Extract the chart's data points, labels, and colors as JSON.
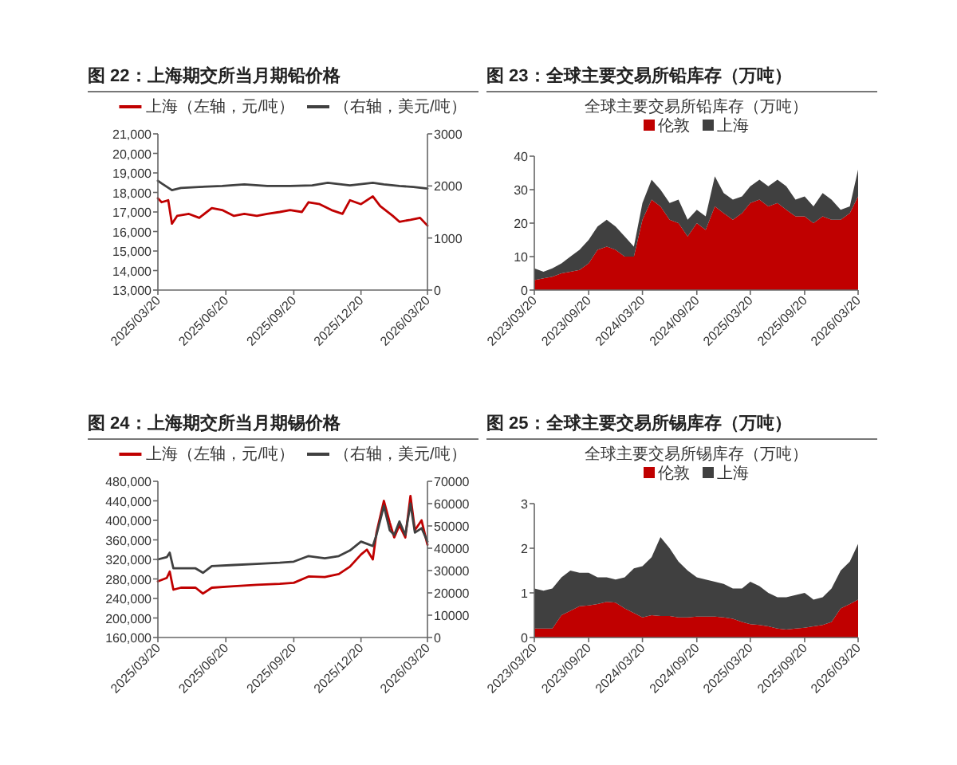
{
  "chart_data": [
    {
      "type": "line",
      "title": "图 22：上海期交所当月期铅价格",
      "legend": "top",
      "xlim": [
        "2025-03-20",
        "2026-03-20"
      ],
      "xticks": [
        {
          "value": "2025-03-20",
          "label": "2025/03/20"
        },
        {
          "value": "2025-06-20",
          "label": "2025/06/20"
        },
        {
          "value": "2025-09-20",
          "label": "2025/09/20"
        },
        {
          "value": "2025-12-20",
          "label": "2025/12/20"
        },
        {
          "value": "2026-03-20",
          "label": "2026/03/20"
        }
      ],
      "ylim": [
        13000,
        21000
      ],
      "yticks": [
        {
          "value": 13000,
          "label": "13,000"
        },
        {
          "value": 14000,
          "label": "14,000"
        },
        {
          "value": 15000,
          "label": "15,000"
        },
        {
          "value": 16000,
          "label": "16,000"
        },
        {
          "value": 17000,
          "label": "17,000"
        },
        {
          "value": 18000,
          "label": "18,000"
        },
        {
          "value": 19000,
          "label": "19,000"
        },
        {
          "value": 20000,
          "label": "20,000"
        },
        {
          "value": 21000,
          "label": "21,000"
        }
      ],
      "y2lim": [
        0,
        3000
      ],
      "y2ticks": [
        0,
        1000,
        2000,
        3000
      ],
      "series": [
        {
          "name": "上海（左轴，元/吨）",
          "color": "#c00000",
          "x": [
            "2025-03-20",
            "2025-03-25",
            "2025-04-03",
            "2025-04-08",
            "2025-04-15",
            "2025-05-01",
            "2025-05-15",
            "2025-06-01",
            "2025-06-15",
            "2025-07-01",
            "2025-07-15",
            "2025-08-01",
            "2025-08-15",
            "2025-09-01",
            "2025-09-15",
            "2025-10-01",
            "2025-10-10",
            "2025-10-25",
            "2025-11-10",
            "2025-11-25",
            "2025-12-05",
            "2025-12-20",
            "2026-01-05",
            "2026-01-15",
            "2026-02-01",
            "2026-02-10",
            "2026-02-25",
            "2026-03-10",
            "2026-03-20"
          ],
          "values": [
            17700,
            17500,
            17600,
            16400,
            16800,
            16900,
            16700,
            17200,
            17100,
            16800,
            16900,
            16800,
            16900,
            17000,
            17100,
            17000,
            17500,
            17400,
            17100,
            16900,
            17600,
            17400,
            17800,
            17300,
            16800,
            16500,
            16600,
            16700,
            16300
          ]
        },
        {
          "name": "（右轴，美元/吨）",
          "color": "#404040",
          "axis": "y2",
          "x": [
            "2025-03-20",
            "2025-03-25",
            "2025-04-08",
            "2025-04-20",
            "2025-05-15",
            "2025-06-15",
            "2025-07-15",
            "2025-08-15",
            "2025-09-15",
            "2025-10-15",
            "2025-11-05",
            "2025-12-05",
            "2026-01-05",
            "2026-01-20",
            "2026-02-10",
            "2026-03-01",
            "2026-03-20"
          ],
          "values": [
            2100,
            2050,
            1920,
            1960,
            1980,
            2000,
            2030,
            2000,
            2000,
            2010,
            2060,
            2010,
            2060,
            2030,
            2000,
            1980,
            1950
          ]
        }
      ]
    },
    {
      "type": "area",
      "stacked": true,
      "title": "图 23：全球主要交易所铅库存（万吨）",
      "subtitle": "全球主要交易所铅库存（万吨）",
      "legend": "top",
      "x": [
        "2023-03-20",
        "2023-04-20",
        "2023-05-20",
        "2023-06-20",
        "2023-07-20",
        "2023-08-20",
        "2023-09-20",
        "2023-10-20",
        "2023-11-20",
        "2023-12-20",
        "2024-01-20",
        "2024-02-20",
        "2024-03-20",
        "2024-04-20",
        "2024-05-20",
        "2024-06-20",
        "2024-07-20",
        "2024-08-20",
        "2024-09-20",
        "2024-10-20",
        "2024-11-20",
        "2024-12-20",
        "2025-01-20",
        "2025-02-20",
        "2025-03-20",
        "2025-04-20",
        "2025-05-20",
        "2025-06-20",
        "2025-07-20",
        "2025-08-20",
        "2025-09-20",
        "2025-10-20",
        "2025-11-20",
        "2025-12-20",
        "2026-01-20",
        "2026-02-20",
        "2026-03-20"
      ],
      "xlim": [
        "2023-03-20",
        "2026-03-20"
      ],
      "xticks": [
        {
          "value": "2023-03-20",
          "label": "2023/03/20"
        },
        {
          "value": "2023-09-20",
          "label": "2023/09/20"
        },
        {
          "value": "2024-03-20",
          "label": "2024/03/20"
        },
        {
          "value": "2024-09-20",
          "label": "2024/09/20"
        },
        {
          "value": "2025-03-20",
          "label": "2025/03/20"
        },
        {
          "value": "2025-09-20",
          "label": "2025/09/20"
        },
        {
          "value": "2026-03-20",
          "label": "2026/03/20"
        }
      ],
      "ylim": [
        0,
        40
      ],
      "yticks": [
        0,
        10,
        20,
        30,
        40
      ],
      "series": [
        {
          "name": "伦敦",
          "color": "#c00000",
          "values": [
            3,
            3.5,
            4,
            5,
            5.5,
            6,
            8,
            12,
            13,
            12,
            10,
            10,
            21,
            27,
            25,
            21,
            20,
            16,
            20,
            18,
            25,
            23,
            21,
            23,
            26,
            27,
            25,
            26,
            24,
            22,
            22,
            20,
            22,
            21,
            21,
            23,
            28
          ]
        },
        {
          "name": "上海",
          "color": "#404040",
          "values": [
            3.5,
            2,
            2.5,
            3,
            4.5,
            6,
            7,
            7,
            8,
            7,
            6,
            3,
            5,
            6,
            5,
            5,
            7,
            5,
            4,
            4,
            9,
            6,
            6,
            5,
            5,
            6,
            6,
            7,
            7,
            5,
            6,
            5,
            7,
            6,
            3,
            2,
            8
          ]
        }
      ]
    },
    {
      "type": "line",
      "title": "图 24：上海期交所当月期锡价格",
      "legend": "top",
      "xlim": [
        "2025-03-20",
        "2026-03-20"
      ],
      "xticks": [
        {
          "value": "2025-03-20",
          "label": "2025/03/20"
        },
        {
          "value": "2025-06-20",
          "label": "2025/06/20"
        },
        {
          "value": "2025-09-20",
          "label": "2025/09/20"
        },
        {
          "value": "2025-12-20",
          "label": "2025/12/20"
        },
        {
          "value": "2026-03-20",
          "label": "2026/03/20"
        }
      ],
      "ylim": [
        160000,
        480000
      ],
      "yticks": [
        {
          "value": 160000,
          "label": "160,000"
        },
        {
          "value": 200000,
          "label": "200,000"
        },
        {
          "value": 240000,
          "label": "240,000"
        },
        {
          "value": 280000,
          "label": "280,000"
        },
        {
          "value": 320000,
          "label": "320,000"
        },
        {
          "value": 360000,
          "label": "360,000"
        },
        {
          "value": 400000,
          "label": "400,000"
        },
        {
          "value": 440000,
          "label": "440,000"
        },
        {
          "value": 480000,
          "label": "480,000"
        }
      ],
      "y2lim": [
        0,
        70000
      ],
      "y2ticks": [
        0,
        10000,
        20000,
        30000,
        40000,
        50000,
        60000,
        70000
      ],
      "series": [
        {
          "name": "上海（左轴，元/吨）",
          "color": "#c00000",
          "x": [
            "2025-03-20",
            "2025-04-01",
            "2025-04-05",
            "2025-04-10",
            "2025-04-20",
            "2025-05-10",
            "2025-05-20",
            "2025-06-01",
            "2025-07-01",
            "2025-08-01",
            "2025-09-01",
            "2025-09-20",
            "2025-10-10",
            "2025-11-01",
            "2025-11-20",
            "2025-12-05",
            "2025-12-20",
            "2025-12-28",
            "2026-01-05",
            "2026-01-10",
            "2026-01-20",
            "2026-01-28",
            "2026-02-03",
            "2026-02-10",
            "2026-02-18",
            "2026-02-25",
            "2026-03-03",
            "2026-03-12",
            "2026-03-20"
          ],
          "values": [
            275000,
            282000,
            295000,
            258000,
            262000,
            262000,
            250000,
            262000,
            265000,
            268000,
            270000,
            272000,
            285000,
            284000,
            290000,
            305000,
            330000,
            340000,
            320000,
            375000,
            440000,
            395000,
            365000,
            390000,
            365000,
            450000,
            380000,
            400000,
            350000
          ]
        },
        {
          "name": "（右轴，美元/吨）",
          "color": "#404040",
          "axis": "y2",
          "x": [
            "2025-03-20",
            "2025-04-01",
            "2025-04-05",
            "2025-04-10",
            "2025-05-10",
            "2025-05-20",
            "2025-06-01",
            "2025-07-01",
            "2025-08-01",
            "2025-09-01",
            "2025-09-20",
            "2025-10-10",
            "2025-11-01",
            "2025-11-20",
            "2025-12-05",
            "2025-12-20",
            "2025-12-28",
            "2026-01-05",
            "2026-01-10",
            "2026-01-20",
            "2026-01-28",
            "2026-02-03",
            "2026-02-10",
            "2026-02-18",
            "2026-02-25",
            "2026-03-03",
            "2026-03-12",
            "2026-03-20"
          ],
          "values": [
            35000,
            36000,
            38000,
            31000,
            31000,
            29000,
            32000,
            32500,
            33000,
            33500,
            34000,
            36500,
            35500,
            36500,
            39000,
            43000,
            42000,
            41000,
            46000,
            59000,
            48000,
            46000,
            52000,
            46000,
            60000,
            47000,
            49000,
            43000
          ]
        }
      ]
    },
    {
      "type": "area",
      "stacked": true,
      "title": "图 25：全球主要交易所锡库存（万吨）",
      "subtitle": "全球主要交易所锡库存（万吨）",
      "legend": "top",
      "x": [
        "2023-03-20",
        "2023-04-20",
        "2023-05-20",
        "2023-06-20",
        "2023-07-20",
        "2023-08-20",
        "2023-09-20",
        "2023-10-20",
        "2023-11-20",
        "2023-12-20",
        "2024-01-20",
        "2024-02-20",
        "2024-03-20",
        "2024-04-20",
        "2024-05-20",
        "2024-06-20",
        "2024-07-20",
        "2024-08-20",
        "2024-09-20",
        "2024-10-20",
        "2024-11-20",
        "2024-12-20",
        "2025-01-20",
        "2025-02-20",
        "2025-03-20",
        "2025-04-20",
        "2025-05-20",
        "2025-06-20",
        "2025-07-20",
        "2025-08-20",
        "2025-09-20",
        "2025-10-20",
        "2025-11-20",
        "2025-12-20",
        "2026-01-20",
        "2026-02-20",
        "2026-03-20"
      ],
      "xlim": [
        "2023-03-20",
        "2026-03-20"
      ],
      "xticks": [
        {
          "value": "2023-03-20",
          "label": "2023/03/20"
        },
        {
          "value": "2023-09-20",
          "label": "2023/09/20"
        },
        {
          "value": "2024-03-20",
          "label": "2024/03/20"
        },
        {
          "value": "2024-09-20",
          "label": "2024/09/20"
        },
        {
          "value": "2025-03-20",
          "label": "2025/03/20"
        },
        {
          "value": "2025-09-20",
          "label": "2025/09/20"
        },
        {
          "value": "2026-03-20",
          "label": "2026/03/20"
        }
      ],
      "ylim": [
        0,
        3
      ],
      "yticks": [
        0,
        1,
        2,
        3
      ],
      "series": [
        {
          "name": "伦敦",
          "color": "#c00000",
          "values": [
            0.2,
            0.2,
            0.2,
            0.5,
            0.6,
            0.7,
            0.72,
            0.75,
            0.8,
            0.78,
            0.65,
            0.55,
            0.45,
            0.5,
            0.48,
            0.48,
            0.45,
            0.45,
            0.47,
            0.47,
            0.47,
            0.45,
            0.42,
            0.35,
            0.3,
            0.28,
            0.25,
            0.2,
            0.18,
            0.2,
            0.22,
            0.25,
            0.28,
            0.35,
            0.65,
            0.75,
            0.85
          ]
        },
        {
          "name": "上海",
          "color": "#404040",
          "values": [
            0.9,
            0.85,
            0.9,
            0.85,
            0.9,
            0.75,
            0.73,
            0.6,
            0.55,
            0.52,
            0.7,
            1.0,
            1.15,
            1.3,
            1.77,
            1.52,
            1.25,
            1.05,
            0.88,
            0.83,
            0.78,
            0.75,
            0.68,
            0.75,
            0.95,
            0.87,
            0.75,
            0.7,
            0.72,
            0.75,
            0.78,
            0.6,
            0.62,
            0.75,
            0.85,
            0.95,
            1.25
          ]
        }
      ]
    }
  ]
}
